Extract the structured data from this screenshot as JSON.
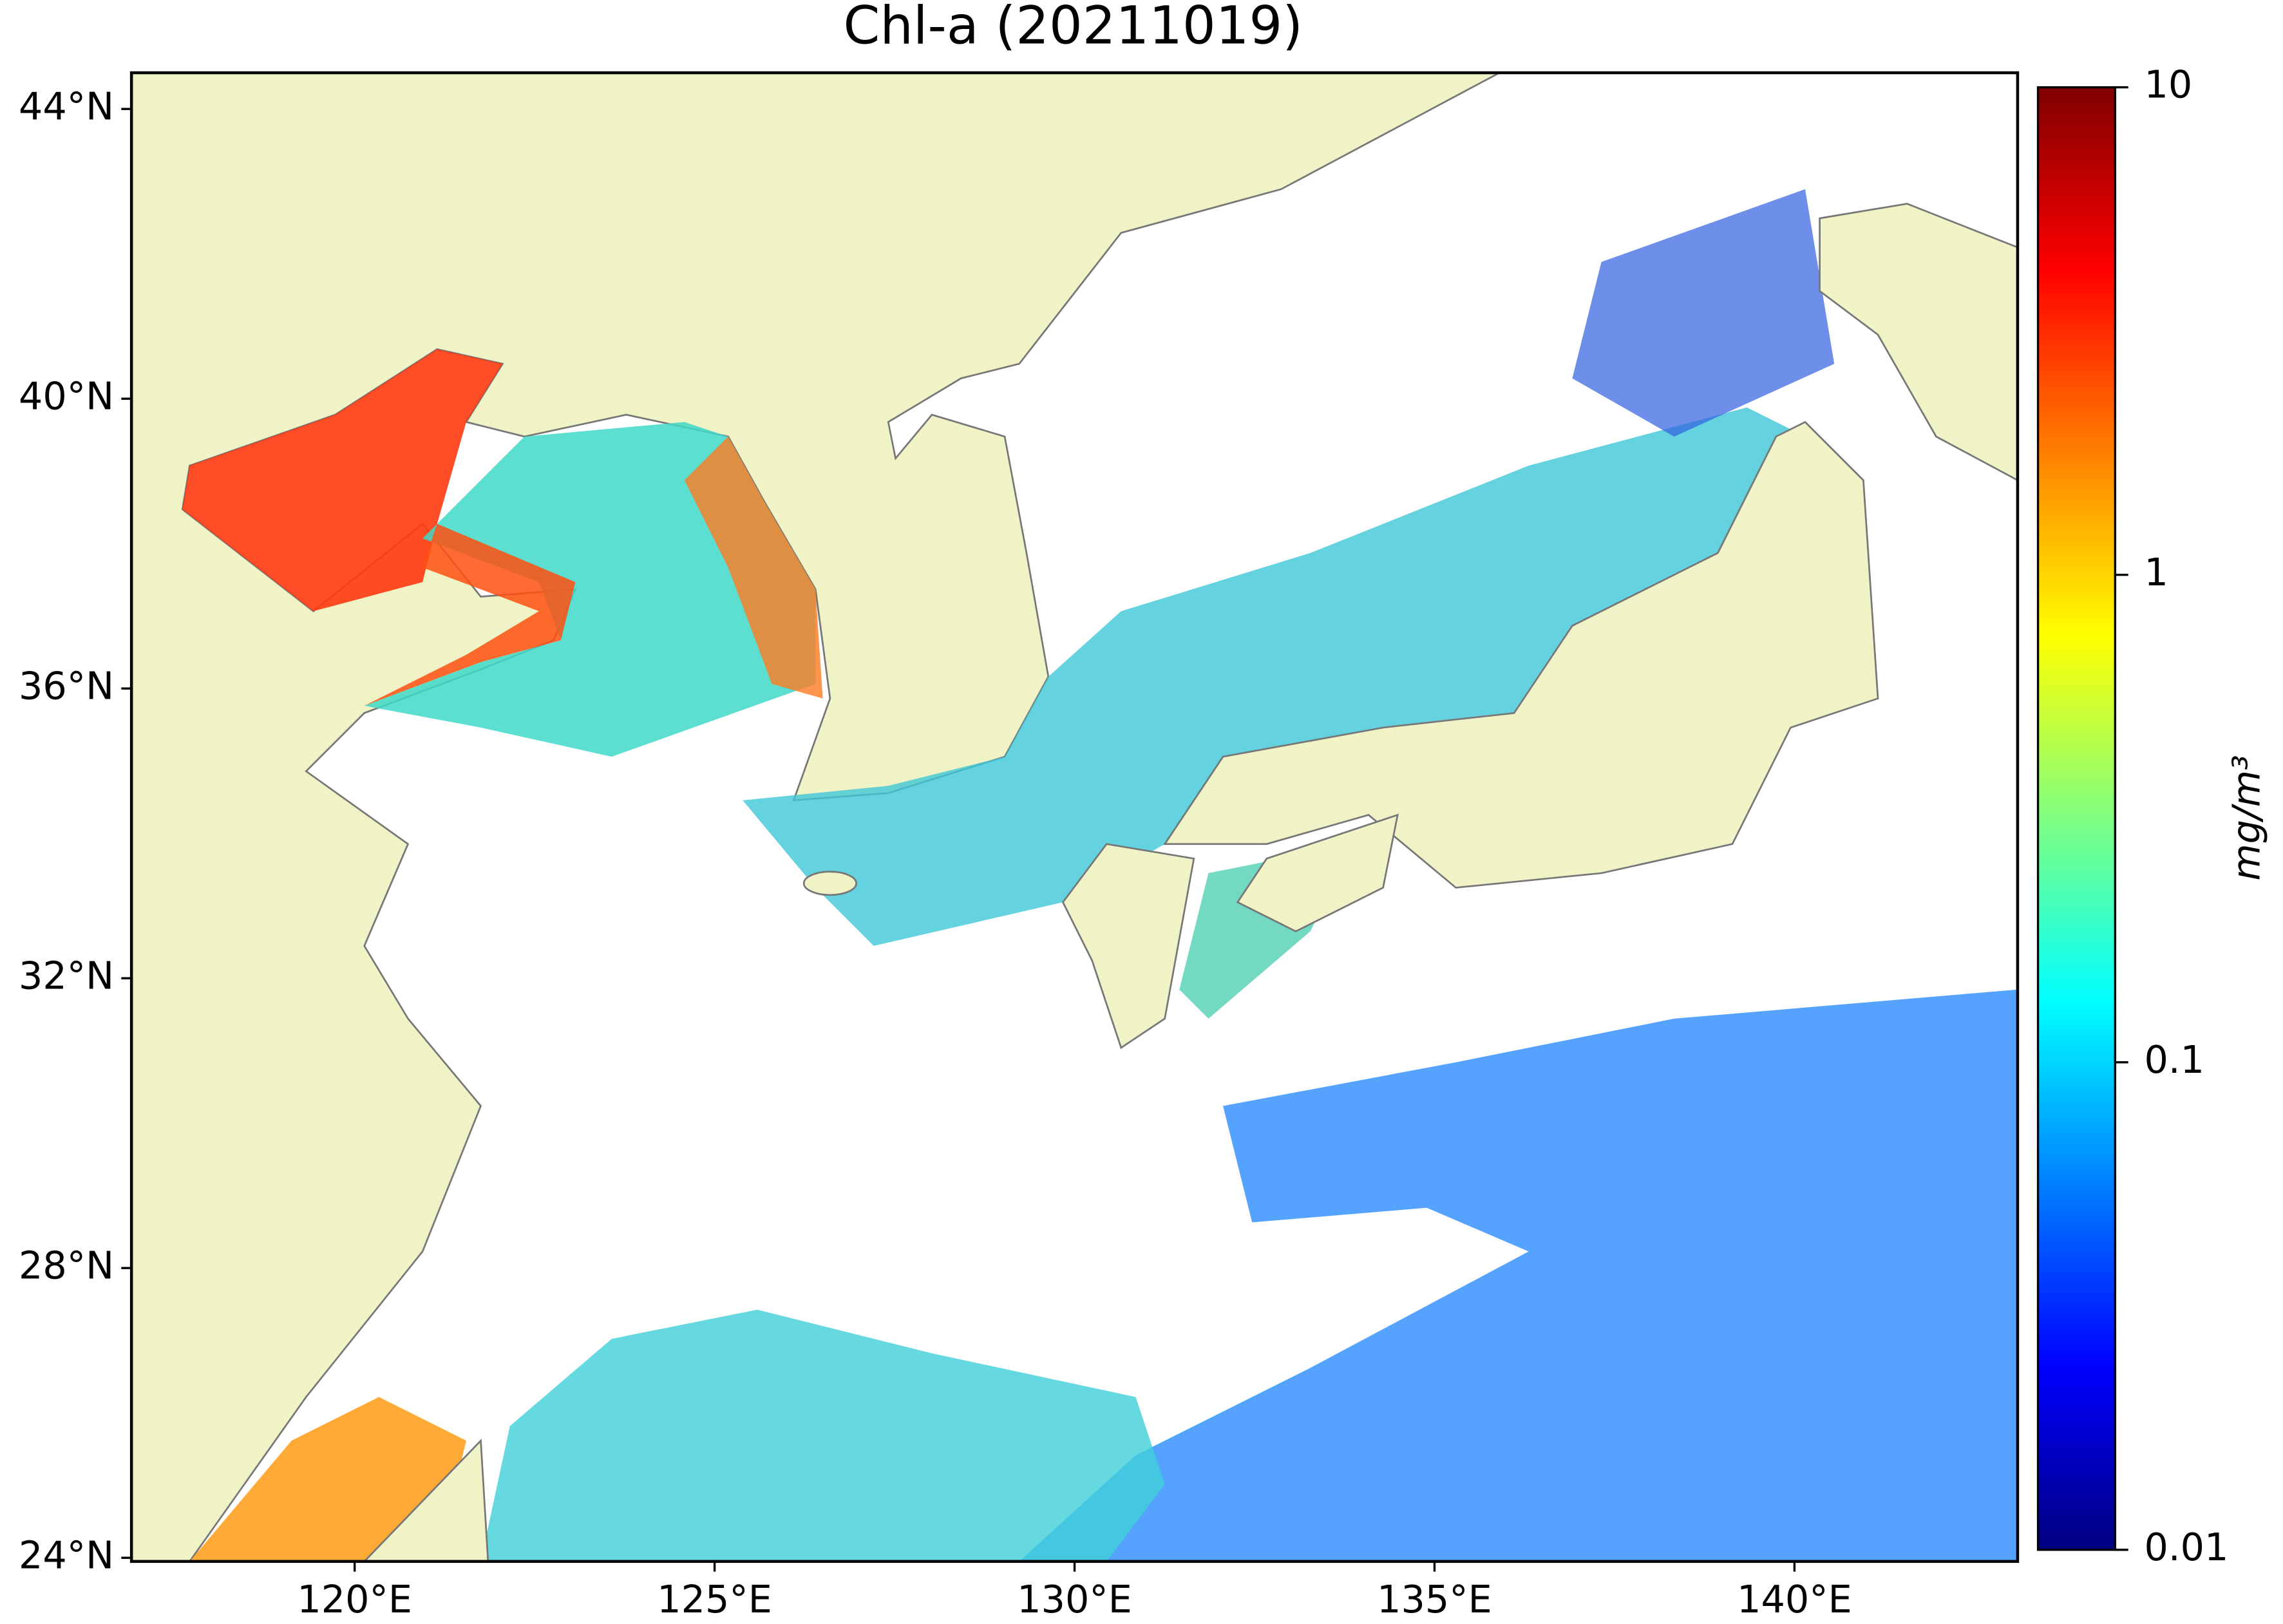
{
  "chart_data": {
    "type": "map",
    "title": "Chl-a (20211019)",
    "xlim": [
      116.9,
      143.1
    ],
    "ylim": [
      23.95,
      44.5
    ],
    "xticks": [
      {
        "value": 120,
        "label": "120°E"
      },
      {
        "value": 125,
        "label": "125°E"
      },
      {
        "value": 130,
        "label": "130°E"
      },
      {
        "value": 135,
        "label": "135°E"
      },
      {
        "value": 140,
        "label": "140°E"
      }
    ],
    "yticks": [
      {
        "value": 24,
        "label": "24°N"
      },
      {
        "value": 28,
        "label": "28°N"
      },
      {
        "value": 32,
        "label": "32°N"
      },
      {
        "value": 36,
        "label": "36°N"
      },
      {
        "value": 40,
        "label": "40°N"
      },
      {
        "value": 44,
        "label": "44°N"
      }
    ],
    "colorbar": {
      "label": "mg/m³",
      "clim": [
        0.01,
        10
      ],
      "log": true,
      "ticks": [
        0.01,
        0.1,
        1,
        10
      ],
      "colormap": "jet"
    }
  }
}
